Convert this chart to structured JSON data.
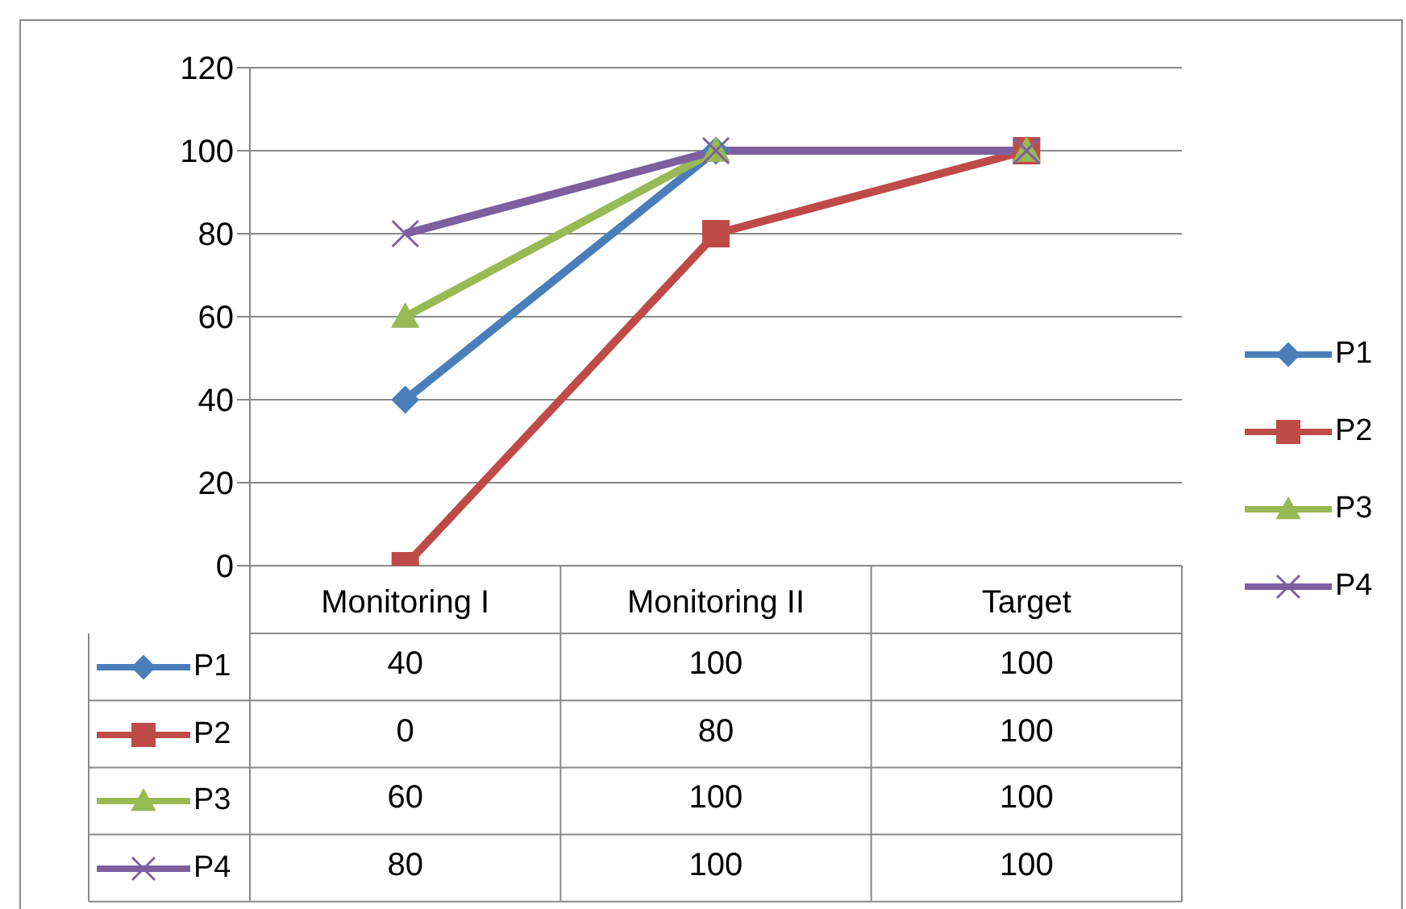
{
  "chart_data": {
    "type": "line",
    "categories": [
      "Monitoring I",
      "Monitoring II",
      "Target"
    ],
    "series": [
      {
        "name": "P1",
        "color": "#4a7ebb",
        "values": [
          40,
          100,
          100
        ],
        "marker": "diamond"
      },
      {
        "name": "P2",
        "color": "#be4b48",
        "values": [
          0,
          80,
          100
        ],
        "marker": "square"
      },
      {
        "name": "P3",
        "color": "#98b954",
        "values": [
          60,
          100,
          100
        ],
        "marker": "triangle"
      },
      {
        "name": "P4",
        "color": "#7d5fa0",
        "values": [
          80,
          100,
          100
        ],
        "marker": "cross"
      }
    ],
    "ylim": [
      0,
      120
    ],
    "yticks": [
      0,
      20,
      40,
      60,
      80,
      100,
      120
    ],
    "grid": "y",
    "legend": "right",
    "data_labels": true,
    "line_style": "solid"
  }
}
